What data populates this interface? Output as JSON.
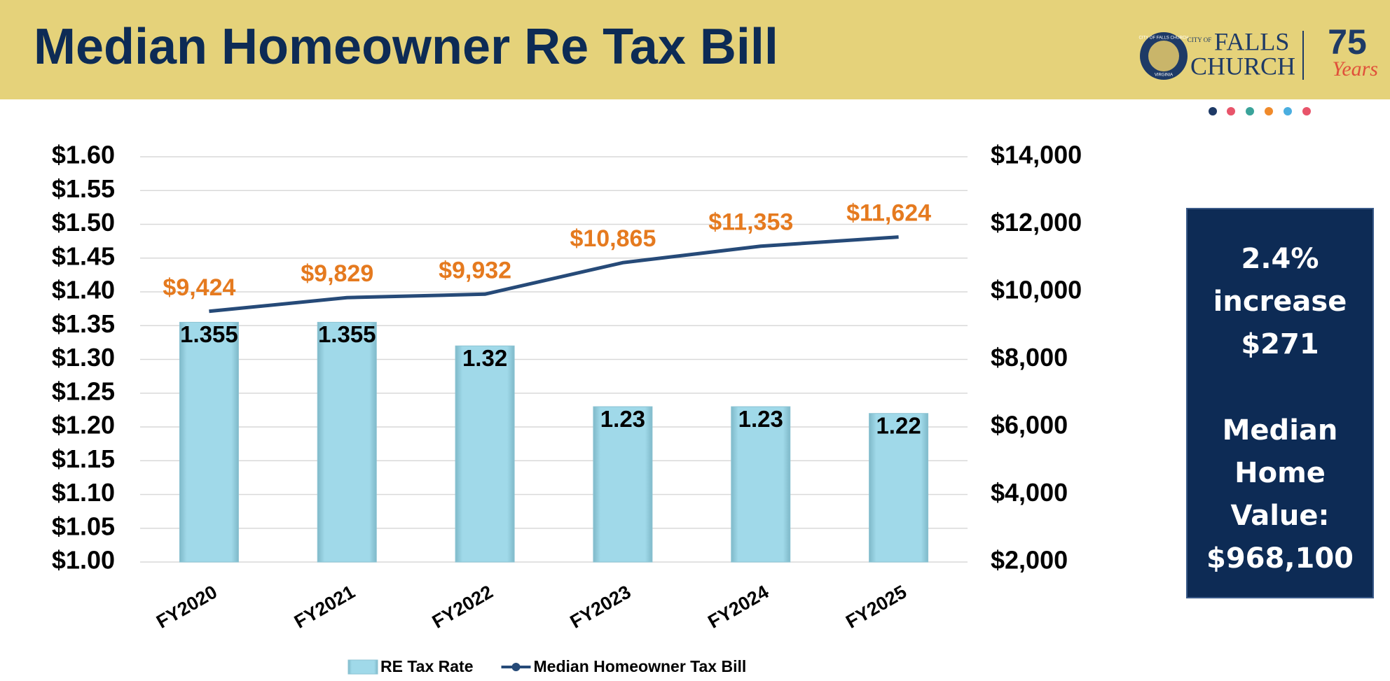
{
  "header": {
    "title": "Median Homeowner Re Tax Bill"
  },
  "logo": {
    "seal_top": "CITY OF FALLS CHURCH",
    "seal_bottom": "VIRGINIA",
    "city_of": "CITY OF",
    "falls": "FALLS",
    "church": "CHURCH",
    "years_number": "75",
    "years_word": "Years"
  },
  "box": {
    "top": [
      "2.4%",
      "increase",
      "$271"
    ],
    "bottom": [
      "Median",
      "Home",
      "Value:",
      "$968,100"
    ]
  },
  "chart_data": {
    "type": "bar",
    "categories": [
      "FY2020",
      "FY2021",
      "FY2022",
      "FY2023",
      "FY2024",
      "FY2025"
    ],
    "series": [
      {
        "name": "RE Tax Rate",
        "type": "bar",
        "color": "#a0d9e9",
        "values": [
          1.355,
          1.355,
          1.32,
          1.23,
          1.23,
          1.22
        ]
      },
      {
        "name": "Median Homeowner Tax Bill",
        "type": "line",
        "axis": "y2",
        "color": "#264a78",
        "label_color": "#e57a1f",
        "values": [
          9424,
          9829,
          9932,
          10865,
          11353,
          11624
        ],
        "value_labels": [
          "$9,424",
          "$9,829",
          "$9,932",
          "$10,865",
          "$11,353",
          "$11,624"
        ]
      }
    ],
    "ylim": [
      1.0,
      1.6
    ],
    "yticks": [
      {
        "value": 1.0,
        "label": "$1.00"
      },
      {
        "value": 1.05,
        "label": "$1.05"
      },
      {
        "value": 1.1,
        "label": "$1.10"
      },
      {
        "value": 1.15,
        "label": "$1.15"
      },
      {
        "value": 1.2,
        "label": "$1.20"
      },
      {
        "value": 1.25,
        "label": "$1.25"
      },
      {
        "value": 1.3,
        "label": "$1.30"
      },
      {
        "value": 1.35,
        "label": "$1.35"
      },
      {
        "value": 1.4,
        "label": "$1.40"
      },
      {
        "value": 1.45,
        "label": "$1.45"
      },
      {
        "value": 1.5,
        "label": "$1.50"
      },
      {
        "value": 1.55,
        "label": "$1.55"
      },
      {
        "value": 1.6,
        "label": "$1.60"
      }
    ],
    "y2lim": [
      2000,
      14000
    ],
    "y2ticks": [
      {
        "value": 2000,
        "label": "$2,000"
      },
      {
        "value": 4000,
        "label": "$4,000"
      },
      {
        "value": 6000,
        "label": "$6,000"
      },
      {
        "value": 8000,
        "label": "$8,000"
      },
      {
        "value": 10000,
        "label": "$10,000"
      },
      {
        "value": 12000,
        "label": "$12,000"
      },
      {
        "value": 14000,
        "label": "$14,000"
      }
    ],
    "grid": true
  }
}
